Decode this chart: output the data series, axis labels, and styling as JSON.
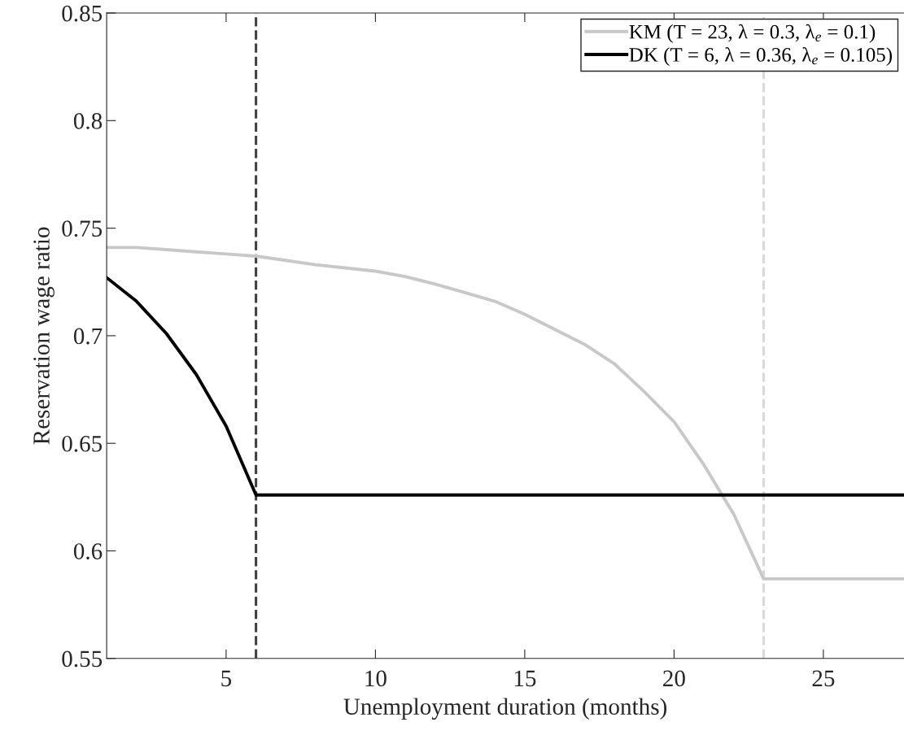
{
  "chart_data": {
    "type": "line",
    "xlabel": "Unemployment duration (months)",
    "ylabel": "Reservation wage ratio",
    "xlim": [
      1,
      27.7
    ],
    "xticks": [
      5,
      10,
      15,
      20,
      25
    ],
    "ylim": [
      0.55,
      0.85
    ],
    "yticks": [
      0.55,
      0.6,
      0.65,
      0.7,
      0.75,
      0.8,
      0.85
    ],
    "grid": false,
    "legend": "top right",
    "marker": "none",
    "line_style": "solid",
    "series": [
      {
        "name": "KM (T = 23, λ = 0.3, λ$_{e}$ = 0.1)",
        "color": "#c8c8c8",
        "x": [
          1,
          2,
          3,
          4,
          5,
          6,
          7,
          8,
          9,
          10,
          11,
          12,
          13,
          14,
          15,
          16,
          17,
          18,
          19,
          20,
          21,
          22,
          23,
          27.7
        ],
        "values": [
          0.741,
          0.741,
          0.74,
          0.739,
          0.738,
          0.737,
          0.735,
          0.733,
          0.7315,
          0.73,
          0.7275,
          0.724,
          0.72,
          0.716,
          0.71,
          0.703,
          0.696,
          0.687,
          0.674,
          0.66,
          0.64,
          0.617,
          0.587,
          0.587
        ]
      },
      {
        "name": "DK (T = 6, λ = 0.36, λ$_{e}$ = 0.105)",
        "color": "#000000",
        "x": [
          1,
          2,
          3,
          4,
          5,
          6,
          27.7
        ],
        "values": [
          0.727,
          0.716,
          0.701,
          0.682,
          0.658,
          0.626,
          0.626
        ]
      }
    ],
    "ref_lines": [
      {
        "axis": "x",
        "value": 6,
        "color": "#404040",
        "line_style": "dashed"
      },
      {
        "axis": "x",
        "value": 23,
        "color": "#d9d9d9",
        "line_style": "dashed"
      }
    ]
  }
}
